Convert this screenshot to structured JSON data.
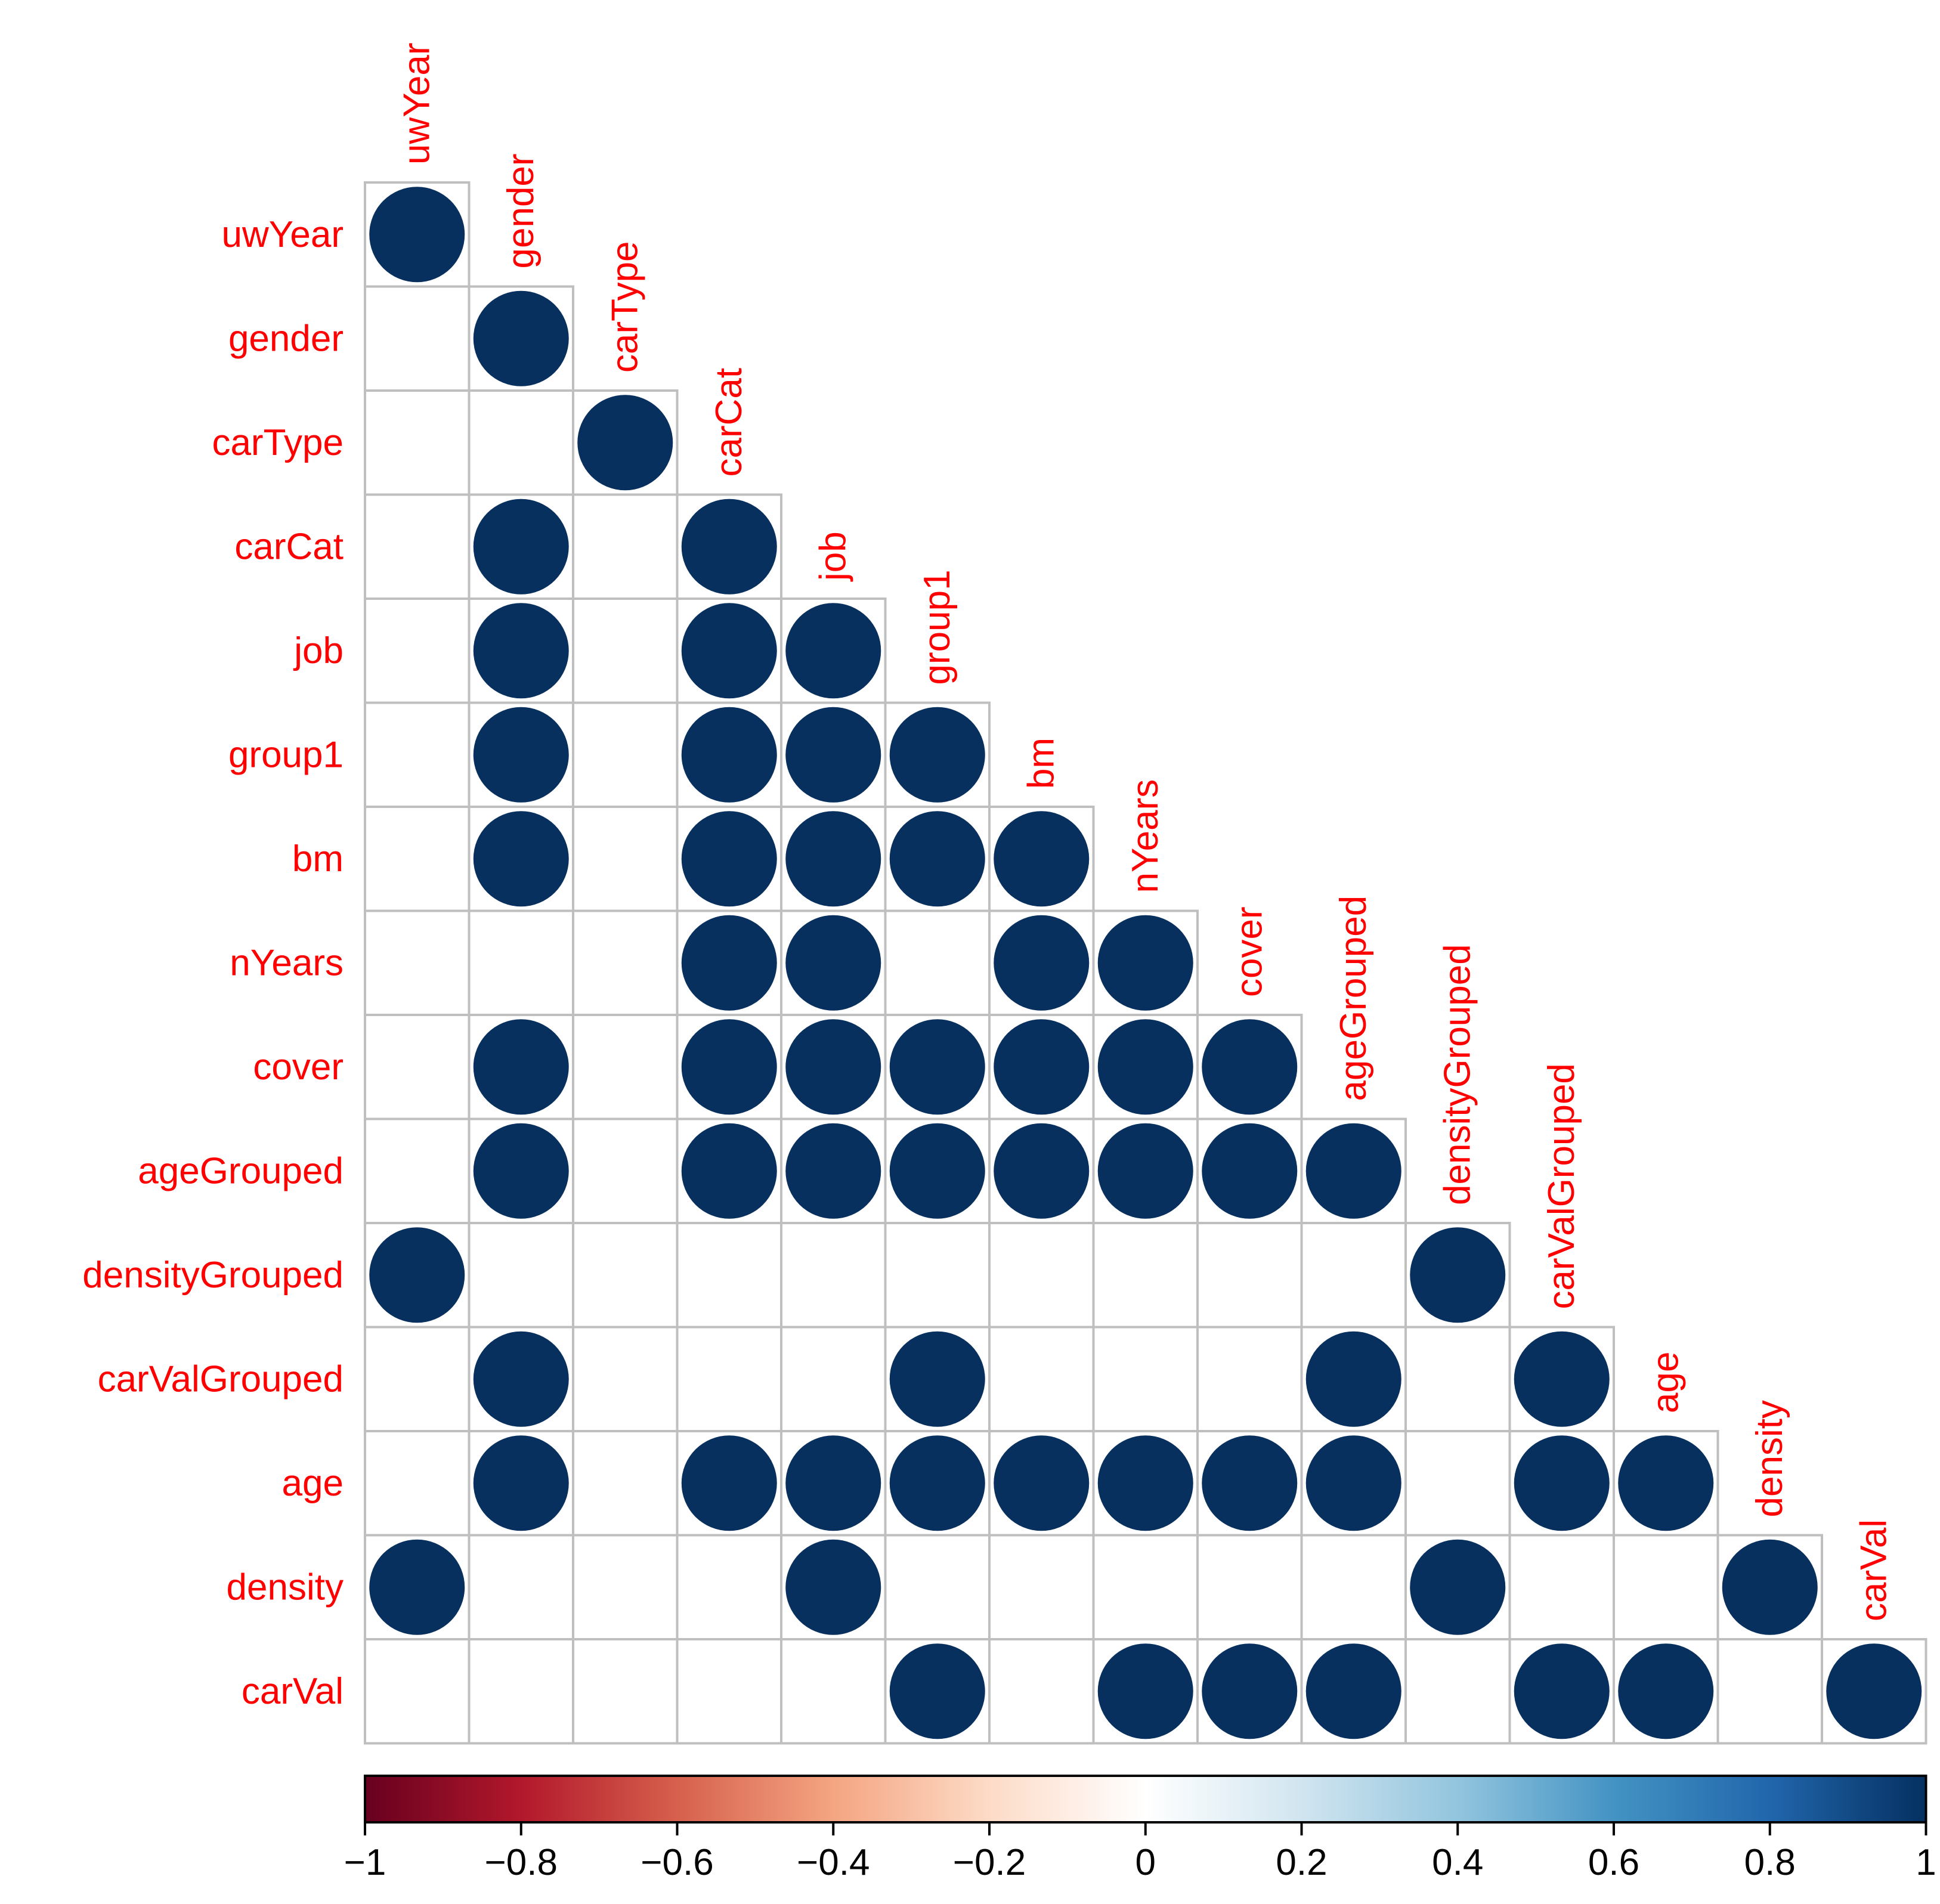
{
  "chart_data": {
    "type": "heatmap",
    "subtype": "correlation-lower-triangle-circles",
    "variables": [
      "uwYear",
      "gender",
      "carType",
      "carCat",
      "job",
      "group1",
      "bm",
      "nYears",
      "cover",
      "ageGrouped",
      "densityGrouped",
      "carValGrouped",
      "age",
      "density",
      "carVal"
    ],
    "matrix_description": "Lower triangle incl. diagonal; 1 = filled circle (value ≈ 1), 0 = blank (value ≈ 0). Row i lists columns 0..i.",
    "matrix": [
      [
        1
      ],
      [
        0,
        1
      ],
      [
        0,
        0,
        1
      ],
      [
        0,
        1,
        0,
        1
      ],
      [
        0,
        1,
        0,
        1,
        1
      ],
      [
        0,
        1,
        0,
        1,
        1,
        1
      ],
      [
        0,
        1,
        0,
        1,
        1,
        1,
        1
      ],
      [
        0,
        0,
        0,
        1,
        1,
        0,
        1,
        1
      ],
      [
        0,
        1,
        0,
        1,
        1,
        1,
        1,
        1,
        1
      ],
      [
        0,
        1,
        0,
        1,
        1,
        1,
        1,
        1,
        1,
        1
      ],
      [
        1,
        0,
        0,
        0,
        0,
        0,
        0,
        0,
        0,
        0,
        1
      ],
      [
        0,
        1,
        0,
        0,
        0,
        1,
        0,
        0,
        0,
        1,
        0,
        1
      ],
      [
        0,
        1,
        0,
        1,
        1,
        1,
        1,
        1,
        1,
        1,
        0,
        1,
        1
      ],
      [
        1,
        0,
        0,
        0,
        1,
        0,
        0,
        0,
        0,
        0,
        1,
        0,
        0,
        1
      ],
      [
        0,
        0,
        0,
        0,
        0,
        1,
        0,
        1,
        1,
        1,
        0,
        1,
        1,
        0,
        1
      ]
    ],
    "colorbar": {
      "range": [
        -1,
        1
      ],
      "ticks": [
        -1,
        -0.8,
        -0.6,
        -0.4,
        -0.2,
        0,
        0.2,
        0.4,
        0.6,
        0.8,
        1
      ],
      "tick_labels": [
        "−1",
        "−0.8",
        "−0.6",
        "−0.4",
        "−0.2",
        "0",
        "0.2",
        "0.4",
        "0.6",
        "0.8",
        "1"
      ],
      "placement": "bottom",
      "colors": [
        "#67001F",
        "#B2182B",
        "#D6604D",
        "#F4A582",
        "#FDDBC7",
        "#FFFFFF",
        "#D1E5F0",
        "#92C5DE",
        "#4393C3",
        "#2166AC",
        "#053061"
      ]
    },
    "label_color": "#FF0000",
    "circle_color": "#08305E",
    "grid_color": "#BFBFBF"
  }
}
